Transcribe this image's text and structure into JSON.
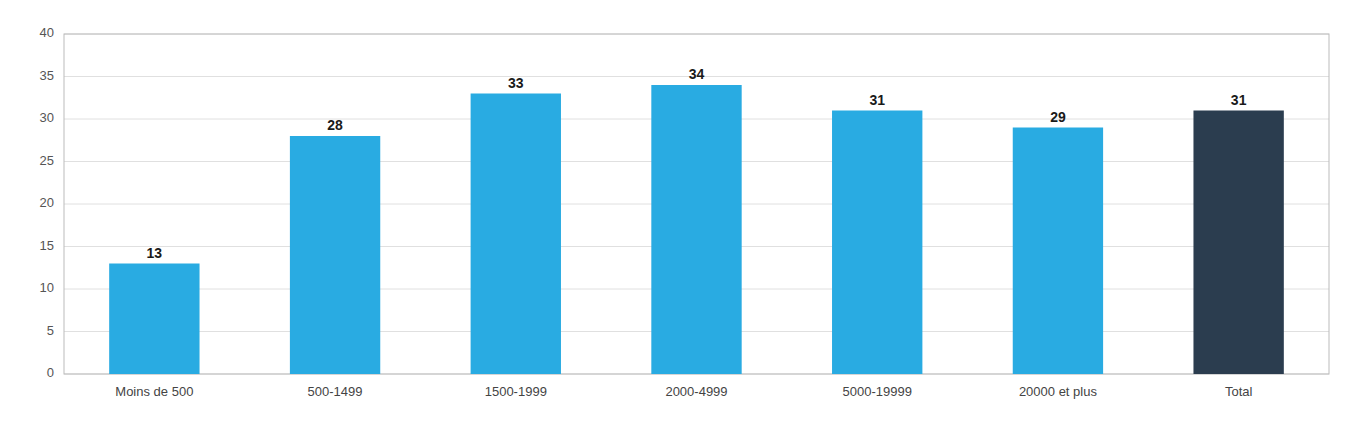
{
  "chart_data": {
    "type": "bar",
    "categories": [
      "Moins de 500",
      "500-1499",
      "1500-1999",
      "2000-4999",
      "5000-19999",
      "20000 et plus",
      "Total"
    ],
    "values": [
      13,
      28,
      33,
      34,
      31,
      29,
      31
    ],
    "colors": [
      "#29ABE2",
      "#29ABE2",
      "#29ABE2",
      "#29ABE2",
      "#29ABE2",
      "#29ABE2",
      "#2B3D4F"
    ],
    "ylim": [
      0,
      40
    ],
    "yticks": [
      0,
      5,
      10,
      15,
      20,
      25,
      30,
      35,
      40
    ],
    "grid": true,
    "data_labels": true
  }
}
